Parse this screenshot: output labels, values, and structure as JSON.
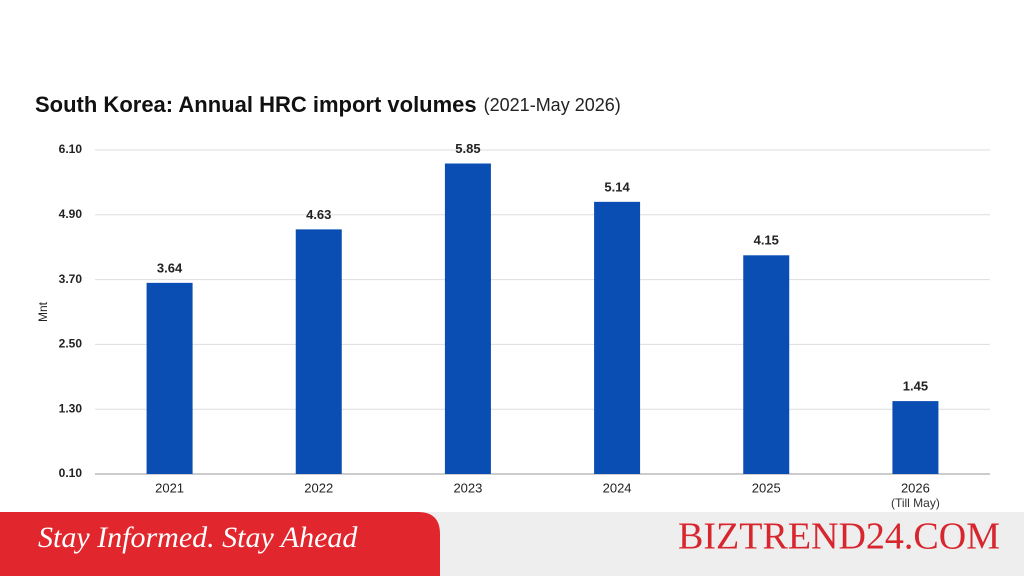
{
  "chart_data": {
    "type": "bar",
    "title": "South Korea: Annual HRC import volumes",
    "subtitle": "(2021-May 2026)",
    "y_label": "Mnt",
    "categories": [
      "2021",
      "2022",
      "2023",
      "2024",
      "2025",
      "2026"
    ],
    "category_note": "(Till May)",
    "values": [
      3.64,
      4.63,
      5.85,
      5.14,
      4.15,
      1.45
    ],
    "color": "#0a4db3",
    "ylim": [
      0.1,
      6.1
    ],
    "yticks": [
      {
        "value": 0.1,
        "label": "0.10"
      },
      {
        "value": 1.3,
        "label": "1.30"
      },
      {
        "value": 2.5,
        "label": "2.50"
      },
      {
        "value": 3.7,
        "label": "3.70"
      },
      {
        "value": 4.9,
        "label": "4.90"
      },
      {
        "value": 6.1,
        "label": "6.10"
      }
    ],
    "grid": true
  },
  "banner": {
    "tagline": "Stay Informed. Stay Ahead",
    "brand": "BIZTREND24.COM"
  }
}
